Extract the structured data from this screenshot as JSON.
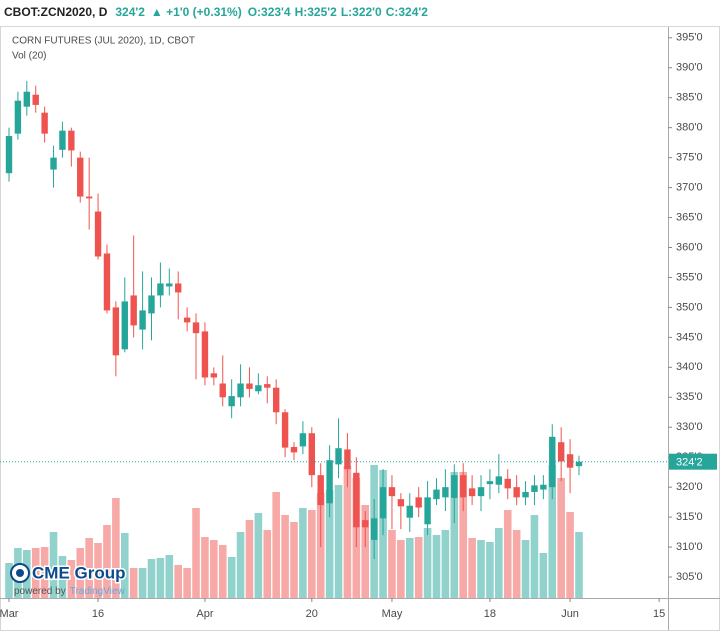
{
  "chart_data": {
    "type": "candlestick",
    "header": {
      "symbol": "CBOT:ZCN2020, D",
      "price": "324'2",
      "change": "▲ +1'0 (+0.31%)",
      "open": "O:323'4",
      "high": "H:325'2",
      "low": "L:322'0",
      "close": "C:324'2"
    },
    "title": "CORN FUTURES (JUL 2020), 1D, CBOT",
    "subtitle": "Vol (20)",
    "logo": {
      "name": "CME Group",
      "powered": "powered by",
      "brand": "TradingView"
    },
    "categories": [
      "Mar",
      null,
      null,
      null,
      null,
      null,
      null,
      null,
      null,
      null,
      "16",
      null,
      null,
      null,
      null,
      null,
      null,
      null,
      null,
      null,
      null,
      null,
      "Apr",
      null,
      null,
      null,
      null,
      null,
      null,
      null,
      null,
      null,
      null,
      null,
      "20",
      null,
      null,
      null,
      null,
      null,
      null,
      null,
      null,
      "May",
      null,
      null,
      null,
      null,
      null,
      null,
      null,
      null,
      null,
      null,
      "18",
      null,
      null,
      null,
      null,
      null,
      null,
      null,
      null,
      "Jun",
      null,
      null,
      null,
      null,
      null,
      null,
      null,
      null,
      null,
      "15"
    ],
    "open": [
      372.4,
      379,
      383.5,
      385.5,
      382.5,
      373,
      376.3,
      379.5,
      375,
      368.5,
      366,
      359,
      350,
      343,
      352,
      346.3,
      349,
      352,
      353.5,
      354,
      348.3,
      347.5,
      346,
      339,
      337.3,
      333.5,
      335,
      337.3,
      336,
      337.2,
      336.6,
      332.5,
      326.7,
      326.8,
      329,
      322,
      317.3,
      323.8,
      326.3,
      322.4,
      314.5,
      311.2,
      314.8,
      320,
      318,
      314.9,
      318.3,
      313.8,
      318,
      318.3,
      318.2,
      322,
      319.8,
      318.5,
      320.5,
      320.4,
      321.4,
      320,
      318.3,
      319.2,
      319.6,
      320,
      327.5,
      325.5,
      323.5,
      null,
      null,
      null,
      null,
      null,
      null,
      null,
      null,
      null
    ],
    "high": [
      380,
      386,
      387.8,
      387,
      383.5,
      377,
      381,
      380,
      376,
      375,
      369,
      360.5,
      351,
      355,
      362,
      356,
      355,
      357.5,
      356.5,
      356,
      350,
      349,
      347.5,
      340,
      342,
      338,
      340.5,
      340,
      339,
      338.5,
      338,
      333,
      327.5,
      331,
      330,
      324,
      327,
      331.5,
      329,
      325,
      316,
      318,
      323,
      322,
      319,
      319,
      320,
      321,
      321.5,
      323,
      323.8,
      324,
      322,
      322,
      323,
      325.5,
      323,
      322,
      321,
      322,
      322,
      330.5,
      330,
      328,
      325.25,
      null,
      null,
      null,
      null,
      null,
      null,
      null,
      null,
      null
    ],
    "low": [
      371,
      378,
      382,
      382.5,
      377.5,
      370,
      375,
      373.5,
      367.5,
      363,
      358,
      349,
      338.5,
      342.5,
      345,
      343,
      344.5,
      350,
      352,
      348,
      346,
      338,
      337,
      337,
      333.5,
      331.5,
      333.5,
      335,
      335.5,
      334,
      330.5,
      325,
      324.5,
      325.5,
      320,
      310,
      315,
      321.5,
      320,
      310,
      310,
      308,
      312,
      313,
      313,
      312.5,
      315,
      312,
      317,
      316,
      314,
      316,
      317,
      316,
      318,
      319,
      318,
      317,
      317,
      317,
      318,
      318,
      321,
      319,
      322,
      null,
      null,
      null,
      null,
      null,
      null,
      null,
      null,
      null
    ],
    "close": [
      378.6,
      384.5,
      386,
      383.8,
      379,
      375,
      379.5,
      376.2,
      368.5,
      368.2,
      358.5,
      349.5,
      342,
      351,
      347,
      349.5,
      352,
      354,
      354,
      352.5,
      347.5,
      345.7,
      338.3,
      338.3,
      335,
      335.2,
      337.3,
      336.4,
      337,
      336.6,
      332.5,
      326.6,
      325.8,
      329,
      322,
      317,
      324.5,
      326.5,
      323,
      313.3,
      313.3,
      314.8,
      320,
      318.5,
      316.8,
      316.9,
      316.6,
      318.3,
      319.6,
      320,
      322,
      318.3,
      318.5,
      320,
      321,
      321.8,
      319.8,
      318.3,
      319.2,
      320.3,
      320.4,
      328.4,
      324.3,
      323.25,
      324.25,
      null,
      null,
      null,
      null,
      null,
      null,
      null,
      null,
      null
    ],
    "volume": [
      35,
      50,
      48,
      50,
      51,
      66,
      42,
      38,
      50,
      60,
      55,
      73,
      100,
      65,
      30,
      30,
      39,
      40,
      43,
      33,
      30,
      90,
      61,
      58,
      53,
      41,
      66,
      78,
      85,
      68,
      106,
      83,
      76,
      90,
      88,
      105,
      108,
      113,
      132,
      120,
      93,
      133,
      128,
      68,
      58,
      60,
      61,
      70,
      63,
      68,
      126,
      126,
      60,
      58,
      56,
      70,
      88,
      68,
      58,
      83,
      45,
      133,
      120,
      86,
      66,
      null,
      null,
      null,
      null,
      null,
      null,
      null,
      null,
      null
    ],
    "up_color": "#26a69a",
    "down_color": "#ef5350",
    "ylim": [
      301.5,
      396.3
    ],
    "yticks": [
      {
        "value": 305,
        "label": "305'0"
      },
      {
        "value": 310,
        "label": "310'0"
      },
      {
        "value": 315,
        "label": "315'0"
      },
      {
        "value": 320,
        "label": "320'0"
      },
      {
        "value": 325,
        "label": "325'0"
      },
      {
        "value": 330,
        "label": "330'0"
      },
      {
        "value": 335,
        "label": "335'0"
      },
      {
        "value": 340,
        "label": "340'0"
      },
      {
        "value": 345,
        "label": "345'0"
      },
      {
        "value": 350,
        "label": "350'0"
      },
      {
        "value": 355,
        "label": "355'0"
      },
      {
        "value": 360,
        "label": "360'0"
      },
      {
        "value": 365,
        "label": "365'0"
      },
      {
        "value": 370,
        "label": "370'0"
      },
      {
        "value": 375,
        "label": "375'0"
      },
      {
        "value": 380,
        "label": "380'0"
      },
      {
        "value": 385,
        "label": "385'0"
      },
      {
        "value": 390,
        "label": "390'0"
      },
      {
        "value": 395,
        "label": "395'0"
      }
    ],
    "last_price": {
      "value": 324.25,
      "label": "324'2"
    },
    "grid": false
  }
}
